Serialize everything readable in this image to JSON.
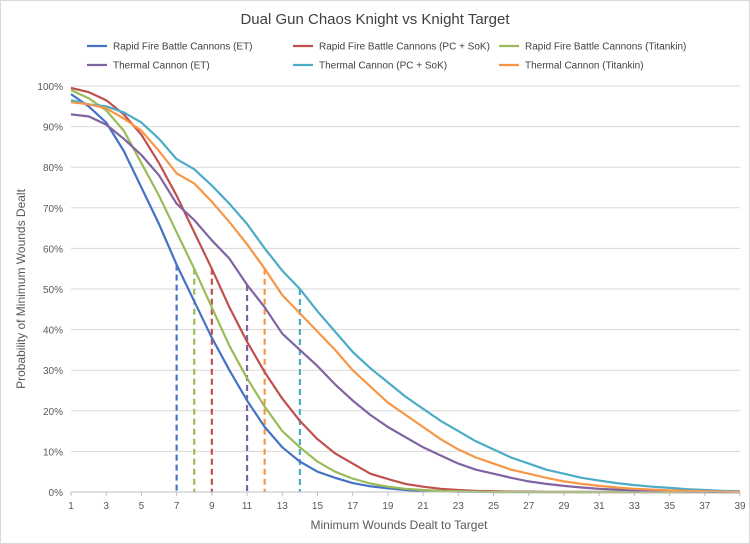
{
  "chart_data": {
    "type": "line",
    "title": "Dual Gun Chaos Knight vs Knight Target",
    "xlabel": "Minimum Wounds Dealt  to Target",
    "ylabel": "Probability of Minimum Wounds Dealt",
    "x": [
      1,
      2,
      3,
      4,
      5,
      6,
      7,
      8,
      9,
      10,
      11,
      12,
      13,
      14,
      15,
      16,
      17,
      18,
      19,
      20,
      21,
      22,
      23,
      24,
      25,
      26,
      27,
      28,
      29,
      30,
      31,
      32,
      33,
      34,
      35,
      36,
      37,
      38,
      39
    ],
    "xticks": [
      1,
      3,
      5,
      7,
      9,
      11,
      13,
      15,
      17,
      19,
      21,
      23,
      25,
      27,
      29,
      31,
      33,
      35,
      37,
      39
    ],
    "xlim": [
      1,
      39
    ],
    "ylim": [
      0,
      100
    ],
    "yticks": [
      0,
      10,
      20,
      30,
      40,
      50,
      60,
      70,
      80,
      90,
      100
    ],
    "ytick_suffix": "%",
    "grid": "horizontal",
    "legend": "top",
    "series": [
      {
        "name": "Rapid Fire Battle Cannons (ET)",
        "color": "#4472C4",
        "values": [
          98,
          95,
          91,
          84,
          75,
          66,
          56,
          47,
          38,
          30,
          22.5,
          16,
          11,
          7.5,
          5,
          3.5,
          2.2,
          1.4,
          0.9,
          0.5,
          0.3,
          0.2,
          0.1,
          0.1,
          0,
          0,
          0,
          0,
          0,
          0,
          0,
          0,
          0,
          0,
          0,
          0,
          0,
          0,
          0
        ]
      },
      {
        "name": "Rapid Fire Battle Cannons (PC + SoK)",
        "color": "#C0504D",
        "values": [
          99.5,
          98.5,
          96.5,
          93,
          88,
          81,
          73,
          64,
          55,
          45.5,
          37,
          29.5,
          23,
          17.5,
          13,
          9.5,
          7,
          4.5,
          3.2,
          2,
          1.3,
          0.8,
          0.5,
          0.3,
          0.2,
          0.1,
          0.1,
          0,
          0,
          0,
          0,
          0,
          0,
          0,
          0,
          0,
          0,
          0,
          0
        ]
      },
      {
        "name": "Rapid Fire Battle Cannons (Titankin)",
        "color": "#9BBB59",
        "values": [
          99,
          97,
          94,
          89,
          81,
          73,
          64,
          55,
          45.5,
          36,
          28,
          21,
          15,
          11,
          7.5,
          5,
          3.3,
          2.1,
          1.3,
          0.8,
          0.5,
          0.3,
          0.2,
          0.1,
          0,
          0,
          0,
          0,
          0,
          0,
          0,
          0,
          0,
          0,
          0,
          0,
          0,
          0,
          0
        ]
      },
      {
        "name": "Thermal Cannon (ET)",
        "color": "#8064A2",
        "values": [
          93,
          92.5,
          90.5,
          87,
          83,
          78,
          71,
          67,
          62,
          57.5,
          51,
          45.5,
          39,
          35,
          31,
          26.5,
          22.5,
          19,
          16,
          13.5,
          11,
          9,
          7,
          5.5,
          4.5,
          3.5,
          2.6,
          2,
          1.5,
          1.1,
          0.8,
          0.6,
          0.4,
          0.3,
          0.2,
          0.1,
          0.1,
          0,
          0
        ]
      },
      {
        "name": "Thermal Cannon (PC + SoK)",
        "color": "#4BACC6",
        "values": [
          96.5,
          95.5,
          95,
          93.5,
          91,
          87,
          82,
          79.5,
          75.5,
          71,
          66,
          60,
          54.5,
          50,
          44.5,
          39.5,
          34.5,
          30.5,
          27,
          23.5,
          20.5,
          17.5,
          15,
          12.5,
          10.5,
          8.5,
          7,
          5.5,
          4.5,
          3.5,
          2.8,
          2.2,
          1.7,
          1.3,
          1,
          0.7,
          0.5,
          0.3,
          0.2
        ]
      },
      {
        "name": "Thermal Cannon (Titankin)",
        "color": "#F79646",
        "values": [
          96,
          95.5,
          94.5,
          92,
          89,
          84,
          78.5,
          76,
          71.5,
          66.5,
          61,
          55,
          48.5,
          44,
          39.5,
          35,
          30,
          26,
          22,
          19,
          16,
          13,
          10.5,
          8.5,
          7,
          5.5,
          4.5,
          3.5,
          2.6,
          2,
          1.5,
          1.1,
          0.8,
          0.6,
          0.4,
          0.3,
          0.2,
          0.1,
          0
        ]
      }
    ],
    "annotations": [
      {
        "type": "dashed_vline",
        "series": "Rapid Fire Battle Cannons (ET)",
        "x": 7,
        "y": 56
      },
      {
        "type": "dashed_vline",
        "series": "Rapid Fire Battle Cannons (Titankin)",
        "x": 8,
        "y": 55
      },
      {
        "type": "dashed_vline",
        "series": "Rapid Fire Battle Cannons (PC + SoK)",
        "x": 9,
        "y": 55
      },
      {
        "type": "dashed_vline",
        "series": "Thermal Cannon (ET)",
        "x": 11,
        "y": 51
      },
      {
        "type": "dashed_vline",
        "series": "Thermal Cannon (Titankin)",
        "x": 12,
        "y": 55
      },
      {
        "type": "dashed_vline",
        "series": "Thermal Cannon (PC + SoK)",
        "x": 14,
        "y": 50
      }
    ]
  }
}
